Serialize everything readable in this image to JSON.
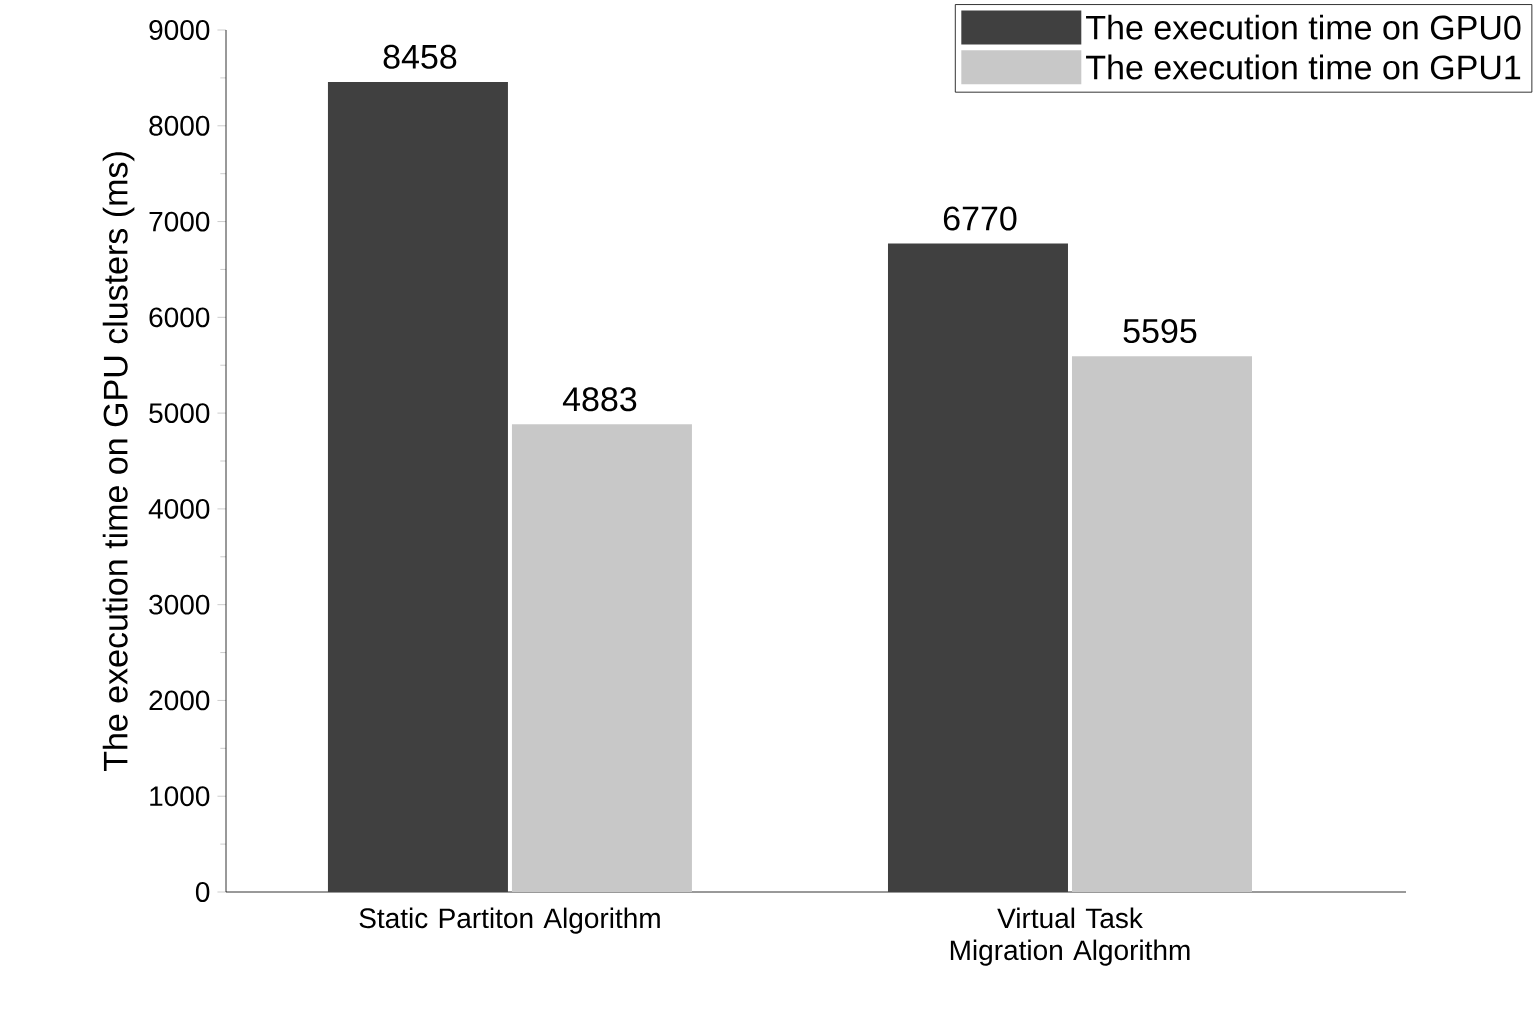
{
  "chart_data": {
    "type": "bar",
    "ylabel": "The execution time on GPU clusters (ms)",
    "categories": [
      "Static Partiton Algorithm",
      "Virtual Task Migration Algorithm"
    ],
    "series": [
      {
        "name": "The execution time on GPU0",
        "color": "#404040",
        "values": [
          8458,
          6770
        ]
      },
      {
        "name": "The execution time on GPU1",
        "color": "#c8c8c8",
        "values": [
          4883,
          5595
        ]
      }
    ],
    "ylim": [
      0,
      9000
    ],
    "yticks": [
      0,
      1000,
      2000,
      3000,
      4000,
      5000,
      6000,
      7000,
      8000,
      9000
    ],
    "data_labels": true,
    "legend": "top right",
    "grid": false
  }
}
